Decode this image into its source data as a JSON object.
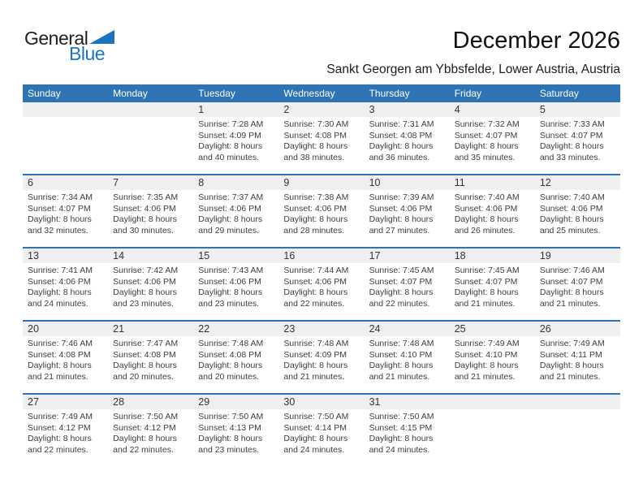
{
  "logo": {
    "part1": "General",
    "part2": "Blue"
  },
  "header": {
    "title": "December 2026",
    "subtitle": "Sankt Georgen am Ybbsfelde, Lower Austria, Austria"
  },
  "colors": {
    "accent": "#2E74B5",
    "logo_blue": "#1C75BC",
    "band_gray": "#EFEFEF"
  },
  "calendar": {
    "weekdays": [
      "Sunday",
      "Monday",
      "Tuesday",
      "Wednesday",
      "Thursday",
      "Friday",
      "Saturday"
    ],
    "weeks": [
      [
        null,
        null,
        {
          "day": "1",
          "sunrise": "Sunrise: 7:28 AM",
          "sunset": "Sunset: 4:09 PM",
          "daylight": "Daylight: 8 hours and 40 minutes."
        },
        {
          "day": "2",
          "sunrise": "Sunrise: 7:30 AM",
          "sunset": "Sunset: 4:08 PM",
          "daylight": "Daylight: 8 hours and 38 minutes."
        },
        {
          "day": "3",
          "sunrise": "Sunrise: 7:31 AM",
          "sunset": "Sunset: 4:08 PM",
          "daylight": "Daylight: 8 hours and 36 minutes."
        },
        {
          "day": "4",
          "sunrise": "Sunrise: 7:32 AM",
          "sunset": "Sunset: 4:07 PM",
          "daylight": "Daylight: 8 hours and 35 minutes."
        },
        {
          "day": "5",
          "sunrise": "Sunrise: 7:33 AM",
          "sunset": "Sunset: 4:07 PM",
          "daylight": "Daylight: 8 hours and 33 minutes."
        }
      ],
      [
        {
          "day": "6",
          "sunrise": "Sunrise: 7:34 AM",
          "sunset": "Sunset: 4:07 PM",
          "daylight": "Daylight: 8 hours and 32 minutes."
        },
        {
          "day": "7",
          "sunrise": "Sunrise: 7:35 AM",
          "sunset": "Sunset: 4:06 PM",
          "daylight": "Daylight: 8 hours and 30 minutes."
        },
        {
          "day": "8",
          "sunrise": "Sunrise: 7:37 AM",
          "sunset": "Sunset: 4:06 PM",
          "daylight": "Daylight: 8 hours and 29 minutes."
        },
        {
          "day": "9",
          "sunrise": "Sunrise: 7:38 AM",
          "sunset": "Sunset: 4:06 PM",
          "daylight": "Daylight: 8 hours and 28 minutes."
        },
        {
          "day": "10",
          "sunrise": "Sunrise: 7:39 AM",
          "sunset": "Sunset: 4:06 PM",
          "daylight": "Daylight: 8 hours and 27 minutes."
        },
        {
          "day": "11",
          "sunrise": "Sunrise: 7:40 AM",
          "sunset": "Sunset: 4:06 PM",
          "daylight": "Daylight: 8 hours and 26 minutes."
        },
        {
          "day": "12",
          "sunrise": "Sunrise: 7:40 AM",
          "sunset": "Sunset: 4:06 PM",
          "daylight": "Daylight: 8 hours and 25 minutes."
        }
      ],
      [
        {
          "day": "13",
          "sunrise": "Sunrise: 7:41 AM",
          "sunset": "Sunset: 4:06 PM",
          "daylight": "Daylight: 8 hours and 24 minutes."
        },
        {
          "day": "14",
          "sunrise": "Sunrise: 7:42 AM",
          "sunset": "Sunset: 4:06 PM",
          "daylight": "Daylight: 8 hours and 23 minutes."
        },
        {
          "day": "15",
          "sunrise": "Sunrise: 7:43 AM",
          "sunset": "Sunset: 4:06 PM",
          "daylight": "Daylight: 8 hours and 23 minutes."
        },
        {
          "day": "16",
          "sunrise": "Sunrise: 7:44 AM",
          "sunset": "Sunset: 4:06 PM",
          "daylight": "Daylight: 8 hours and 22 minutes."
        },
        {
          "day": "17",
          "sunrise": "Sunrise: 7:45 AM",
          "sunset": "Sunset: 4:07 PM",
          "daylight": "Daylight: 8 hours and 22 minutes."
        },
        {
          "day": "18",
          "sunrise": "Sunrise: 7:45 AM",
          "sunset": "Sunset: 4:07 PM",
          "daylight": "Daylight: 8 hours and 21 minutes."
        },
        {
          "day": "19",
          "sunrise": "Sunrise: 7:46 AM",
          "sunset": "Sunset: 4:07 PM",
          "daylight": "Daylight: 8 hours and 21 minutes."
        }
      ],
      [
        {
          "day": "20",
          "sunrise": "Sunrise: 7:46 AM",
          "sunset": "Sunset: 4:08 PM",
          "daylight": "Daylight: 8 hours and 21 minutes."
        },
        {
          "day": "21",
          "sunrise": "Sunrise: 7:47 AM",
          "sunset": "Sunset: 4:08 PM",
          "daylight": "Daylight: 8 hours and 20 minutes."
        },
        {
          "day": "22",
          "sunrise": "Sunrise: 7:48 AM",
          "sunset": "Sunset: 4:08 PM",
          "daylight": "Daylight: 8 hours and 20 minutes."
        },
        {
          "day": "23",
          "sunrise": "Sunrise: 7:48 AM",
          "sunset": "Sunset: 4:09 PM",
          "daylight": "Daylight: 8 hours and 21 minutes."
        },
        {
          "day": "24",
          "sunrise": "Sunrise: 7:48 AM",
          "sunset": "Sunset: 4:10 PM",
          "daylight": "Daylight: 8 hours and 21 minutes."
        },
        {
          "day": "25",
          "sunrise": "Sunrise: 7:49 AM",
          "sunset": "Sunset: 4:10 PM",
          "daylight": "Daylight: 8 hours and 21 minutes."
        },
        {
          "day": "26",
          "sunrise": "Sunrise: 7:49 AM",
          "sunset": "Sunset: 4:11 PM",
          "daylight": "Daylight: 8 hours and 21 minutes."
        }
      ],
      [
        {
          "day": "27",
          "sunrise": "Sunrise: 7:49 AM",
          "sunset": "Sunset: 4:12 PM",
          "daylight": "Daylight: 8 hours and 22 minutes."
        },
        {
          "day": "28",
          "sunrise": "Sunrise: 7:50 AM",
          "sunset": "Sunset: 4:12 PM",
          "daylight": "Daylight: 8 hours and 22 minutes."
        },
        {
          "day": "29",
          "sunrise": "Sunrise: 7:50 AM",
          "sunset": "Sunset: 4:13 PM",
          "daylight": "Daylight: 8 hours and 23 minutes."
        },
        {
          "day": "30",
          "sunrise": "Sunrise: 7:50 AM",
          "sunset": "Sunset: 4:14 PM",
          "daylight": "Daylight: 8 hours and 24 minutes."
        },
        {
          "day": "31",
          "sunrise": "Sunrise: 7:50 AM",
          "sunset": "Sunset: 4:15 PM",
          "daylight": "Daylight: 8 hours and 24 minutes."
        },
        null,
        null
      ]
    ]
  }
}
